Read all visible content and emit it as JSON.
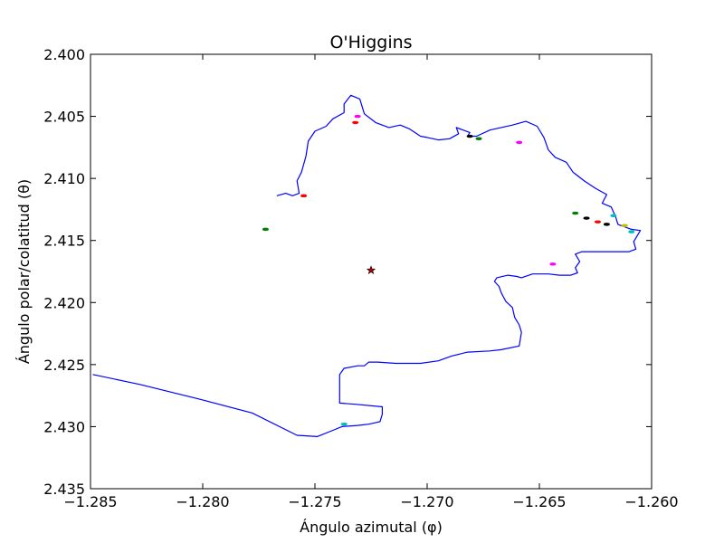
{
  "chart_data": {
    "type": "line",
    "title": "O'Higgins",
    "xlabel": "Ángulo azimutal (φ)",
    "ylabel": "Ángulo polar/colatitud (θ)",
    "xlim": [
      -1.285,
      -1.26
    ],
    "ylim": [
      2.4,
      2.435
    ],
    "y_inverted": true,
    "grid": false,
    "x_ticks": [
      -1.285,
      -1.28,
      -1.275,
      -1.27,
      -1.265,
      -1.26
    ],
    "x_tick_labels": [
      "−1.285",
      "−1.280",
      "−1.275",
      "−1.270",
      "−1.265",
      "−1.260"
    ],
    "y_ticks": [
      2.4,
      2.405,
      2.41,
      2.415,
      2.42,
      2.425,
      2.43,
      2.435
    ],
    "y_tick_labels": [
      "2.400",
      "2.405",
      "2.410",
      "2.415",
      "2.420",
      "2.425",
      "2.430",
      "2.435"
    ],
    "colors": {
      "outline": "#0000ff",
      "star": "#bf0000",
      "islands": [
        "#008000",
        "#00bfbf",
        "#ff00ff",
        "#ff0000",
        "#000000",
        "#bfbf00",
        "#0000ff"
      ]
    },
    "series": [
      {
        "kind": "outline",
        "color": "#0000ff",
        "points": [
          [
            -1.2849,
            2.4258
          ],
          [
            -1.2828,
            2.4266
          ],
          [
            -1.2801,
            2.4278
          ],
          [
            -1.2778,
            2.4289
          ],
          [
            -1.2758,
            2.4307
          ],
          [
            -1.2749,
            2.4308
          ],
          [
            -1.2742,
            2.4303
          ],
          [
            -1.2738,
            2.43
          ],
          [
            -1.2731,
            2.4299
          ],
          [
            -1.2726,
            2.4298
          ],
          [
            -1.2721,
            2.4296
          ],
          [
            -1.272,
            2.429
          ],
          [
            -1.272,
            2.4284
          ],
          [
            -1.2732,
            2.4282
          ],
          [
            -1.2739,
            2.4281
          ],
          [
            -1.2739,
            2.4258
          ],
          [
            -1.2737,
            2.4253
          ],
          [
            -1.2731,
            2.4251
          ],
          [
            -1.2728,
            2.4251
          ],
          [
            -1.2726,
            2.4248
          ],
          [
            -1.2722,
            2.4248
          ],
          [
            -1.2714,
            2.4249
          ],
          [
            -1.2703,
            2.4249
          ],
          [
            -1.2695,
            2.4247
          ],
          [
            -1.2689,
            2.4243
          ],
          [
            -1.2682,
            2.424
          ],
          [
            -1.2672,
            2.4239
          ],
          [
            -1.2667,
            2.4238
          ],
          [
            -1.2659,
            2.4235
          ],
          [
            -1.2658,
            2.4224
          ],
          [
            -1.2659,
            2.4218
          ],
          [
            -1.2661,
            2.4212
          ],
          [
            -1.2662,
            2.4204
          ],
          [
            -1.2665,
            2.4199
          ],
          [
            -1.2667,
            2.4192
          ],
          [
            -1.2668,
            2.4187
          ],
          [
            -1.267,
            2.4183
          ],
          [
            -1.2669,
            2.418
          ],
          [
            -1.2664,
            2.4178
          ],
          [
            -1.266,
            2.4179
          ],
          [
            -1.2658,
            2.418
          ],
          [
            -1.2653,
            2.4177
          ],
          [
            -1.2646,
            2.4177
          ],
          [
            -1.2641,
            2.4178
          ],
          [
            -1.2636,
            2.4178
          ],
          [
            -1.2633,
            2.4176
          ],
          [
            -1.2634,
            2.4172
          ],
          [
            -1.2632,
            2.4167
          ],
          [
            -1.2634,
            2.4161
          ],
          [
            -1.2631,
            2.4159
          ],
          [
            -1.2627,
            2.4159
          ],
          [
            -1.262,
            2.4159
          ],
          [
            -1.2614,
            2.4159
          ],
          [
            -1.261,
            2.4159
          ],
          [
            -1.2607,
            2.4157
          ],
          [
            -1.2608,
            2.4151
          ],
          [
            -1.2605,
            2.4142
          ],
          [
            -1.2609,
            2.4141
          ],
          [
            -1.2615,
            2.4137
          ],
          [
            -1.2616,
            2.4131
          ],
          [
            -1.2618,
            2.4123
          ],
          [
            -1.2622,
            2.412
          ],
          [
            -1.262,
            2.4113
          ],
          [
            -1.2625,
            2.4108
          ],
          [
            -1.263,
            2.4102
          ],
          [
            -1.2635,
            2.4095
          ],
          [
            -1.2638,
            2.4087
          ],
          [
            -1.2643,
            2.4083
          ],
          [
            -1.2646,
            2.4077
          ],
          [
            -1.2648,
            2.4067
          ],
          [
            -1.2651,
            2.4058
          ],
          [
            -1.2656,
            2.4054
          ],
          [
            -1.2662,
            2.4057
          ],
          [
            -1.2667,
            2.4059
          ],
          [
            -1.2672,
            2.4061
          ],
          [
            -1.2678,
            2.4066
          ],
          [
            -1.2682,
            2.4066
          ],
          [
            -1.2681,
            2.4063
          ],
          [
            -1.2684,
            2.4061
          ],
          [
            -1.2687,
            2.4059
          ],
          [
            -1.2686,
            2.4064
          ],
          [
            -1.269,
            2.4068
          ],
          [
            -1.2695,
            2.4069
          ],
          [
            -1.27,
            2.4067
          ],
          [
            -1.2703,
            2.4066
          ],
          [
            -1.2708,
            2.406
          ],
          [
            -1.2712,
            2.4057
          ],
          [
            -1.2717,
            2.4059
          ],
          [
            -1.2723,
            2.4055
          ],
          [
            -1.2728,
            2.4048
          ],
          [
            -1.273,
            2.4036
          ],
          [
            -1.2734,
            2.4033
          ],
          [
            -1.2737,
            2.404
          ],
          [
            -1.2737,
            2.4047
          ],
          [
            -1.2742,
            2.4052
          ],
          [
            -1.2745,
            2.4058
          ],
          [
            -1.275,
            2.4062
          ],
          [
            -1.2753,
            2.407
          ],
          [
            -1.2754,
            2.4082
          ],
          [
            -1.2756,
            2.4095
          ],
          [
            -1.2758,
            2.4102
          ],
          [
            -1.2757,
            2.4112
          ],
          [
            -1.276,
            2.4114
          ],
          [
            -1.2763,
            2.4112
          ],
          [
            -1.2767,
            2.4114
          ]
        ]
      }
    ],
    "islands": [
      {
        "x": -1.2772,
        "y": 2.4141,
        "color": "#008000"
      },
      {
        "x": -1.2737,
        "y": 2.4298,
        "color": "#00bfbf"
      },
      {
        "x": -1.2731,
        "y": 2.405,
        "color": "#ff00ff"
      },
      {
        "x": -1.2732,
        "y": 2.4055,
        "color": "#ff0000"
      },
      {
        "x": -1.2681,
        "y": 2.4066,
        "color": "#000000"
      },
      {
        "x": -1.2677,
        "y": 2.4068,
        "color": "#008000"
      },
      {
        "x": -1.2659,
        "y": 2.4071,
        "color": "#ff00ff"
      },
      {
        "x": -1.2634,
        "y": 2.4128,
        "color": "#008000"
      },
      {
        "x": -1.2629,
        "y": 2.4132,
        "color": "#000000"
      },
      {
        "x": -1.2624,
        "y": 2.4135,
        "color": "#ff0000"
      },
      {
        "x": -1.262,
        "y": 2.4137,
        "color": "#000000"
      },
      {
        "x": -1.2617,
        "y": 2.413,
        "color": "#00bfbf"
      },
      {
        "x": -1.2612,
        "y": 2.4138,
        "color": "#bfbf00"
      },
      {
        "x": -1.2609,
        "y": 2.4143,
        "color": "#00bfbf"
      },
      {
        "x": -1.2644,
        "y": 2.4169,
        "color": "#ff00ff"
      },
      {
        "x": -1.2755,
        "y": 2.4114,
        "color": "#ff0000"
      }
    ],
    "markers": [
      {
        "x": -1.2725,
        "y": 2.4174,
        "symbol": "star",
        "color": "#bf0000"
      }
    ]
  }
}
